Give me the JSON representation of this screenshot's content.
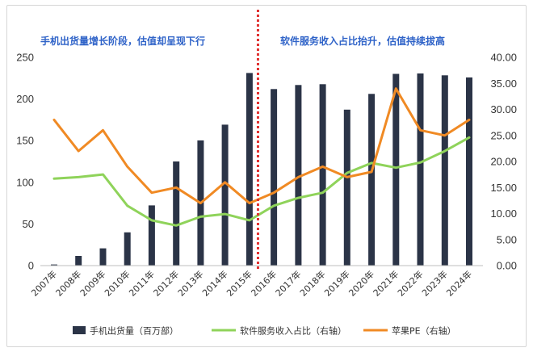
{
  "chart_data": {
    "type": "bar",
    "title": "",
    "categories": [
      "2007年",
      "2008年",
      "2009年",
      "2010年",
      "2011年",
      "2012年",
      "2013年",
      "2014年",
      "2015年",
      "2016年",
      "2017年",
      "2018年",
      "2019年",
      "2020年",
      "2021年",
      "2022年",
      "2023年",
      "2024年"
    ],
    "series": [
      {
        "name": "手机出货量（百万部）",
        "type": "bar",
        "axis": "left",
        "color": "#2b3447",
        "values": [
          1.4,
          11.6,
          20.7,
          39.9,
          72.3,
          125,
          150.3,
          169.2,
          231.2,
          211.9,
          216.8,
          217.7,
          187.2,
          206.1,
          230.1,
          230.6,
          228.4,
          225.9
        ]
      },
      {
        "name": "软件服务收入占比（右轴）",
        "type": "line",
        "axis": "right",
        "color": "#8fd35a",
        "values": [
          16.7,
          17,
          17.5,
          11.5,
          8.7,
          7.7,
          9.4,
          9.9,
          8.7,
          11.5,
          13,
          14,
          17.8,
          19.7,
          18.8,
          19.8,
          22,
          24.6
        ]
      },
      {
        "name": "苹果PE（右轴）",
        "type": "line",
        "axis": "right",
        "color": "#f08a24",
        "values": [
          28,
          22,
          26,
          19,
          14,
          15,
          12,
          16,
          12,
          14,
          17,
          19,
          17,
          18,
          34,
          26,
          25,
          28
        ]
      }
    ],
    "left_axis": {
      "min": 0,
      "max": 250,
      "ticks": [
        "0",
        "50",
        "100",
        "150",
        "200",
        "250"
      ]
    },
    "right_axis": {
      "min": 0,
      "max": 40,
      "ticks": [
        "0.00",
        "5.00",
        "10.00",
        "15.00",
        "20.00",
        "25.00",
        "30.00",
        "35.00",
        "40.00"
      ]
    },
    "annotations": [
      {
        "text": "手机出货量增长阶段，估值却呈现下行",
        "side": "left"
      },
      {
        "text": "软件服务收入占比抬升，估值持续拔高",
        "side": "right"
      }
    ],
    "divider_after_category": "2015年",
    "divider_color": "#e0302f",
    "grid": false,
    "legend_position": "bottom"
  }
}
